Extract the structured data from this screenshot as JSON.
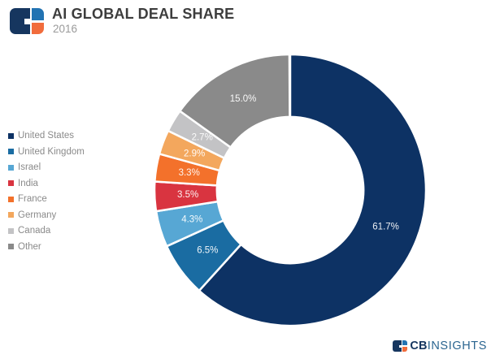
{
  "header": {
    "title": "AI GLOBAL DEAL SHARE",
    "subtitle": "2016"
  },
  "chart_data": {
    "type": "pie",
    "subtype": "donut",
    "title": "AI GLOBAL DEAL SHARE",
    "subtitle": "2016",
    "categories": [
      "United States",
      "United Kingdom",
      "Israel",
      "India",
      "France",
      "Germany",
      "Canada",
      "Other"
    ],
    "values": [
      61.7,
      6.5,
      4.3,
      3.5,
      3.3,
      2.9,
      2.7,
      15.0
    ],
    "labels": [
      "61.7%",
      "6.5%",
      "4.3%",
      "3.5%",
      "3.3%",
      "2.9%",
      "2.7%",
      "15.0%"
    ],
    "colors": [
      "#0D3264",
      "#1A6CA2",
      "#57A7D4",
      "#D93440",
      "#F3712B",
      "#F3A75D",
      "#C3C3C5",
      "#8A8A8A"
    ],
    "unit": "%",
    "start_angle_deg": 0,
    "direction": "clockwise",
    "donut_hole_ratio": 0.54,
    "legend_position": "left",
    "slice_label_color": "#ffffff",
    "slice_separator_color": "#ffffff"
  },
  "footer": {
    "brand_bold": "CB",
    "brand_light": "INSIGHTS"
  }
}
